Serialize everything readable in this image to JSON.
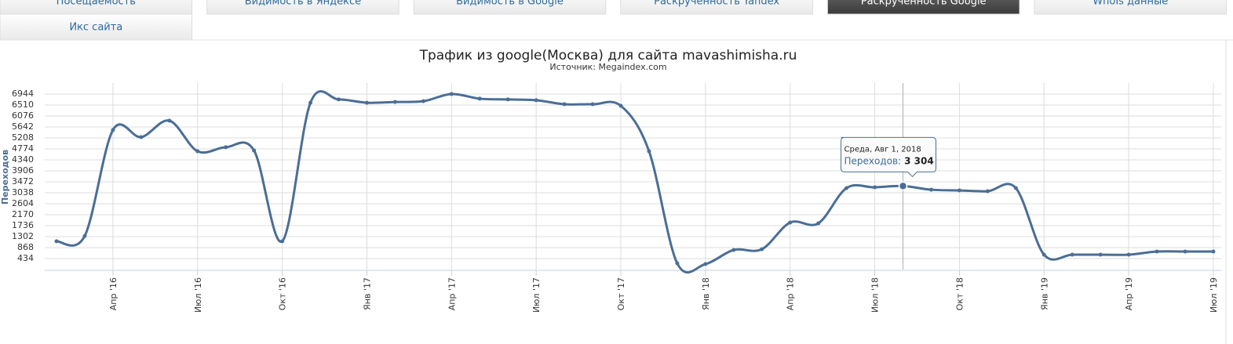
{
  "tabs": [
    "Посещаемость",
    "Видимость в Яндексе",
    "Видимость в Google",
    "Раскрученность Yandex",
    "Раскрученность Google",
    "WhoIs данные",
    "Икс сайта"
  ],
  "active_tab": 4,
  "chart_data": {
    "type": "line",
    "title": "Трафик из google(Москва) для сайта mavashimisha.ru",
    "subtitle": "Источник: Megaindex.com",
    "y_label": "Переходов",
    "categories": [
      null,
      null,
      "Апр '16",
      null,
      null,
      "Июл '16",
      null,
      null,
      "Окт '16",
      null,
      null,
      "Янв '17",
      null,
      null,
      "Апр '17",
      null,
      null,
      "Июл '17",
      null,
      null,
      "Окт '17",
      null,
      null,
      "Янв '18",
      null,
      null,
      "Апр '18",
      null,
      null,
      "Июл '18",
      null,
      null,
      "Окт '18",
      null,
      null,
      "Янв '19",
      null,
      null,
      "Апр '19",
      null,
      null,
      "Июл '19"
    ],
    "series": [
      {
        "name": "Переходов:",
        "color": "#4a6e96",
        "values": [
          1120,
          1330,
          5520,
          5240,
          5890,
          4680,
          4840,
          4710,
          1120,
          6600,
          6730,
          6600,
          6630,
          6660,
          6944,
          6760,
          6730,
          6700,
          6540,
          6540,
          6480,
          4680,
          248,
          217,
          775,
          806,
          1860,
          1830,
          3224,
          3255,
          3304,
          3160,
          3130,
          3100,
          3224,
          589,
          589,
          589,
          589,
          713,
          713,
          713
        ]
      }
    ],
    "ylim": [
      0,
      7378
    ],
    "yticks": [
      434,
      868,
      1302,
      1736,
      2170,
      2604,
      3038,
      3472,
      3906,
      4340,
      4774,
      5208,
      5642,
      6076,
      6510,
      6944
    ],
    "grid": true,
    "tooltip": {
      "index": 30,
      "date": "Среда, Авг 1, 2018",
      "value_label": "3 304"
    }
  }
}
